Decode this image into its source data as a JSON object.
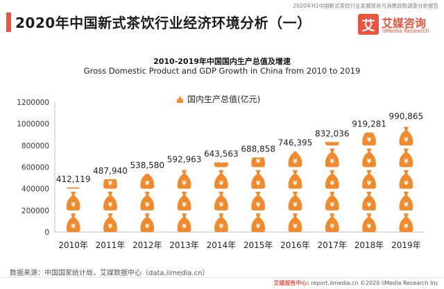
{
  "header": {
    "report_line": "2020年H1中国新式茶饮行业发展现状与消费趋势调查分析报告",
    "title": "2020年中国新式茶饮行业经济环境分析（一）",
    "logo_mark": "艾",
    "logo_cn": "艾媒咨询",
    "logo_en": "iiMedia Research"
  },
  "chart_data": {
    "type": "bar",
    "title": "2010-2019年中国国内生产总值及增速",
    "subtitle": "Gross Domestic Product and GDP Growth in China from 2010 to 2019",
    "categories": [
      "2010年",
      "2011年",
      "2012年",
      "2013年",
      "2014年",
      "2015年",
      "2016年",
      "2017年",
      "2018年",
      "2019年"
    ],
    "series": [
      {
        "name": "国内生产总值(亿元)",
        "values": [
          412119,
          487940,
          538580,
          592963,
          643563,
          688858,
          746395,
          832036,
          919281,
          990865
        ]
      }
    ],
    "value_labels": [
      "412,119",
      "487,940",
      "538,580",
      "592,963",
      "643,563",
      "688,858",
      "746,395",
      "832,036",
      "919,281",
      "990,865"
    ],
    "ylim": [
      0,
      1200000
    ],
    "yticks": [
      "0",
      "200000",
      "400000",
      "600000",
      "800000",
      "1000000",
      "1200000"
    ],
    "ytick_values": [
      0,
      200000,
      400000,
      600000,
      800000,
      1000000,
      1200000
    ],
    "grid": false,
    "legend_position": "top-center",
    "bar_style": "pictograph-money-bag",
    "colors": {
      "bar": "#f28a2c",
      "accent": "#e8543d"
    }
  },
  "footer": {
    "source": "数据来源：中国国家统计局，艾媒数据中心（data.iimedia.cn）",
    "mark": "艾媒报告中心:",
    "text": "report.iimedia.cn ©2020 iiMedia Research Inc"
  }
}
